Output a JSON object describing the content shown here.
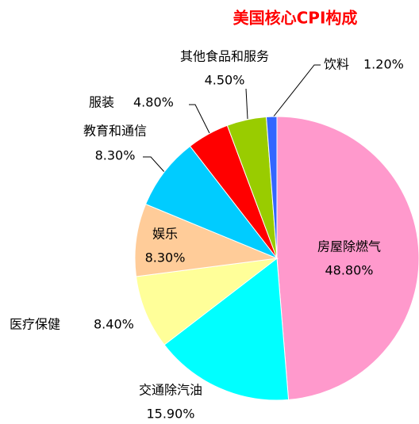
{
  "chart_data": {
    "type": "pie",
    "title": "美国核心CPI构成",
    "categories": [
      "房屋除燃气",
      "交通除汽油",
      "医疗保健",
      "娱乐",
      "教育和通信",
      "服装",
      "其他食品和服务",
      "饮料"
    ],
    "values": [
      48.8,
      15.9,
      8.4,
      8.3,
      8.3,
      4.8,
      4.5,
      1.2
    ],
    "value_labels": [
      "48.80%",
      "15.90%",
      "8.40%",
      "8.30%",
      "8.30%",
      "4.80%",
      "4.50%",
      "1.20%"
    ],
    "colors": [
      "#ff99cc",
      "#00ffff",
      "#ffff99",
      "#ffcc99",
      "#00ccff",
      "#ff0000",
      "#99cc00",
      "#3366ff"
    ]
  }
}
